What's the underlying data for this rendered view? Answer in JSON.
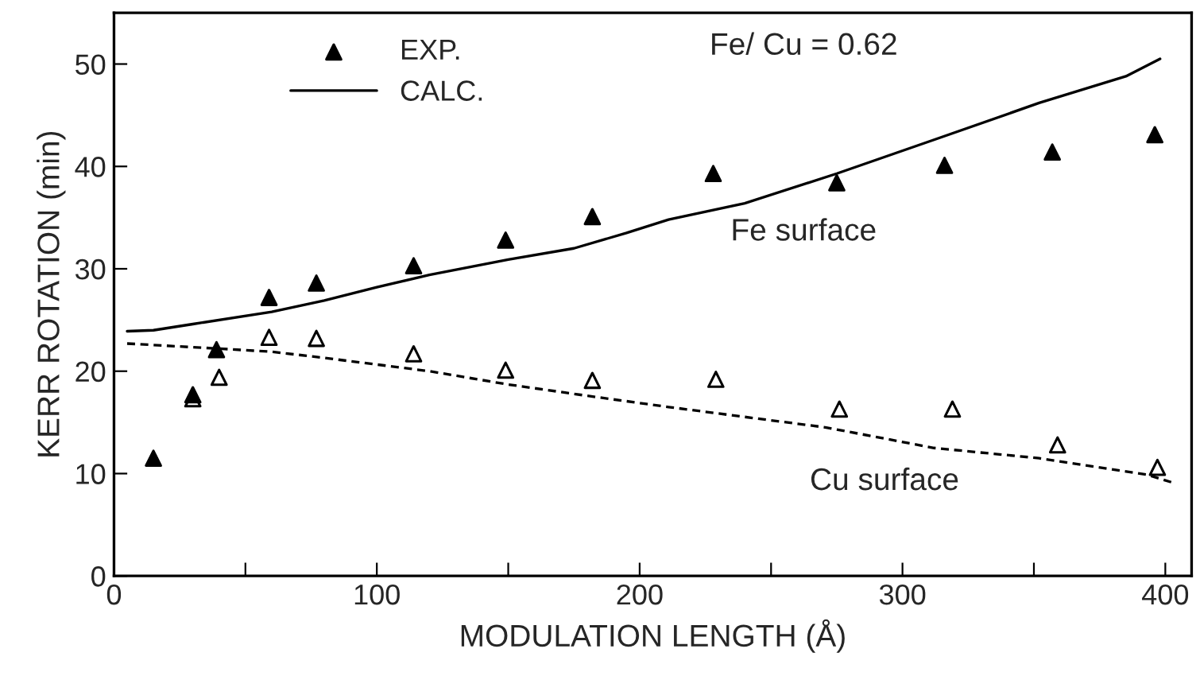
{
  "chart_data": {
    "type": "scatter",
    "xlabel": "MODULATION LENGTH (Å)",
    "ylabel": "KERR ROTATION (min)",
    "xlim": [
      0,
      410
    ],
    "ylim": [
      0,
      55
    ],
    "xticks": [
      0,
      {
        "value": 50,
        "label": null
      },
      100,
      {
        "value": 150,
        "label": null
      },
      200,
      {
        "value": 250,
        "label": null
      },
      300,
      {
        "value": 350,
        "label": null
      },
      400
    ],
    "yticks": [
      0,
      10,
      20,
      30,
      40,
      50
    ],
    "grid": false,
    "legend": "top left",
    "series": [
      {
        "name": "EXP.",
        "marker": "triangle",
        "color": "#000000",
        "x": [
          15,
          30,
          39,
          59,
          77,
          114,
          149,
          182,
          228,
          275,
          316,
          357,
          396
        ],
        "values": [
          11.5,
          17.7,
          22.1,
          27.2,
          28.6,
          30.3,
          32.8,
          35.1,
          39.3,
          38.4,
          40.1,
          41.4,
          43.1
        ]
      },
      {
        "marker": "triangle",
        "color": "#000000",
        "x": [
          30,
          40,
          59,
          77,
          114,
          149,
          182,
          229,
          276,
          319,
          359,
          397
        ],
        "values": [
          17.3,
          19.4,
          23.3,
          23.2,
          21.7,
          20.1,
          19.1,
          19.2,
          16.3,
          16.3,
          12.8,
          10.6
        ]
      },
      {
        "name": "CALC.",
        "type": "line",
        "color": "#000000",
        "line_style": "solid",
        "x": [
          5,
          15,
          30,
          60,
          80,
          100,
          120,
          150,
          175,
          195,
          211,
          240,
          275,
          312,
          352,
          385,
          398
        ],
        "values": [
          23.9,
          24.0,
          24.6,
          25.8,
          26.9,
          28.2,
          29.4,
          30.9,
          32.0,
          33.5,
          34.8,
          36.4,
          39.3,
          42.6,
          46.2,
          48.8,
          50.5
        ]
      },
      {
        "type": "line",
        "color": "#000000",
        "line_style": "dashed",
        "x": [
          5,
          40,
          60,
          80,
          120,
          150,
          180,
          211,
          271,
          312,
          352,
          393,
          403
        ],
        "values": [
          22.7,
          22.2,
          21.9,
          21.3,
          20.0,
          18.7,
          17.6,
          16.5,
          14.5,
          12.5,
          11.5,
          9.9,
          9.1
        ]
      }
    ],
    "annotations": [
      "Fe/ Cu = 0.62",
      "Fe surface",
      "Cu surface"
    ]
  }
}
